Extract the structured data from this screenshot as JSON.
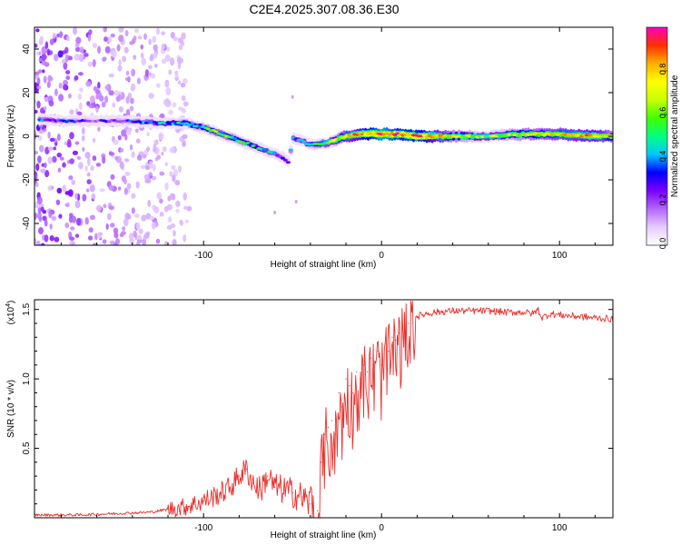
{
  "page": {
    "title": "C2E4.2025.307.08.36.E30"
  },
  "colors": {
    "line": "#e8302c",
    "axis": "#000000"
  },
  "chart_data": [
    {
      "type": "heatmap",
      "title": "C2E4.2025.307.08.36.E30",
      "xlabel": "Height of straight line (km)",
      "ylabel": "Frequency (Hz)",
      "xlim": [
        -195,
        130
      ],
      "ylim": [
        -50,
        50
      ],
      "xticks": [
        -100,
        0,
        100
      ],
      "xtick_labels": [
        "-100",
        "0",
        "100"
      ],
      "yticks": [
        -40,
        -20,
        0,
        20,
        40
      ],
      "ytick_labels": [
        "-40",
        "-20",
        "0",
        "20",
        "40"
      ],
      "colorbar": {
        "label": "Normalized spectral amplitude",
        "range": [
          0,
          1
        ],
        "ticks": [
          0.0,
          0.2,
          0.4,
          0.6,
          0.8
        ],
        "tick_labels": [
          "0.0",
          "0.2",
          "0.4",
          "0.6",
          "0.8"
        ],
        "colormap": [
          "#ffffff",
          "#e6ccff",
          "#b266ff",
          "#7a00ff",
          "#0000ff",
          "#00c8ff",
          "#00ff80",
          "#40ff00",
          "#c8ff00",
          "#ffff00",
          "#ffb000",
          "#ff3000",
          "#ff00c0"
        ]
      },
      "ridge": {
        "x": [
          -195,
          -180,
          -160,
          -140,
          -125,
          -110,
          -100,
          -90,
          -80,
          -70,
          -60,
          -55,
          -52,
          -50,
          -45,
          -40,
          -30,
          -20,
          -10,
          0,
          10,
          20,
          40,
          60,
          80,
          100,
          120,
          130
        ],
        "freq": [
          8,
          7,
          7,
          7,
          6,
          6,
          4,
          1,
          -2,
          -5,
          -8,
          -10,
          -12,
          -1,
          -2,
          -4,
          -3,
          0,
          1,
          1,
          1,
          0,
          0,
          0,
          1,
          1,
          0,
          0
        ],
        "amplitude": [
          0.35,
          0.3,
          0.25,
          0.3,
          0.4,
          0.5,
          0.5,
          0.55,
          0.5,
          0.45,
          0.35,
          0.3,
          0.25,
          0.4,
          0.4,
          0.45,
          0.6,
          0.75,
          0.85,
          0.95,
          0.9,
          0.9,
          0.7,
          0.6,
          0.7,
          0.75,
          0.8,
          0.7
        ]
      },
      "noise_region_x": [
        -195,
        -120
      ]
    },
    {
      "type": "line",
      "title": "",
      "xlabel": "Height of straight line (km)",
      "ylabel": "SNR (10 * v/v)",
      "multiplier": "(x10",
      "multiplier_exp": "4",
      "multiplier_close": ")",
      "xlim": [
        -195,
        130
      ],
      "ylim": [
        0,
        1.57
      ],
      "xticks": [
        -100,
        0,
        100
      ],
      "xtick_labels": [
        "-100",
        "0",
        "100"
      ],
      "yticks": [
        0.5,
        1.0,
        1.5
      ],
      "ytick_labels": [
        "0.5",
        "1.0",
        "1.5"
      ],
      "series": [
        {
          "name": "SNR",
          "x": [
            -195,
            -170,
            -150,
            -130,
            -120,
            -110,
            -100,
            -95,
            -90,
            -85,
            -80,
            -76,
            -72,
            -68,
            -64,
            -60,
            -55,
            -50,
            -45,
            -40,
            -36,
            -34,
            -32,
            -30,
            -28,
            -26,
            -24,
            -22,
            -20,
            -18,
            -16,
            -14,
            -12,
            -10,
            -8,
            -6,
            -4,
            -2,
            0,
            2,
            4,
            6,
            8,
            10,
            15,
            20,
            25,
            30,
            40,
            50,
            60,
            70,
            80,
            85,
            88,
            90,
            95,
            100,
            110,
            120,
            130
          ],
          "y": [
            0.02,
            0.02,
            0.03,
            0.04,
            0.06,
            0.08,
            0.12,
            0.15,
            0.18,
            0.22,
            0.3,
            0.35,
            0.25,
            0.2,
            0.3,
            0.22,
            0.2,
            0.18,
            0.15,
            0.1,
            0.05,
            0.4,
            0.6,
            0.65,
            0.7,
            0.6,
            0.9,
            0.8,
            1.0,
            0.95,
            0.9,
            1.05,
            1.0,
            1.1,
            1.05,
            1.15,
            1.1,
            1.2,
            1.1,
            1.25,
            1.2,
            1.3,
            1.28,
            1.33,
            1.4,
            1.45,
            1.47,
            1.48,
            1.49,
            1.49,
            1.49,
            1.48,
            1.48,
            1.47,
            1.5,
            1.44,
            1.47,
            1.46,
            1.45,
            1.44,
            1.43
          ]
        }
      ]
    }
  ]
}
